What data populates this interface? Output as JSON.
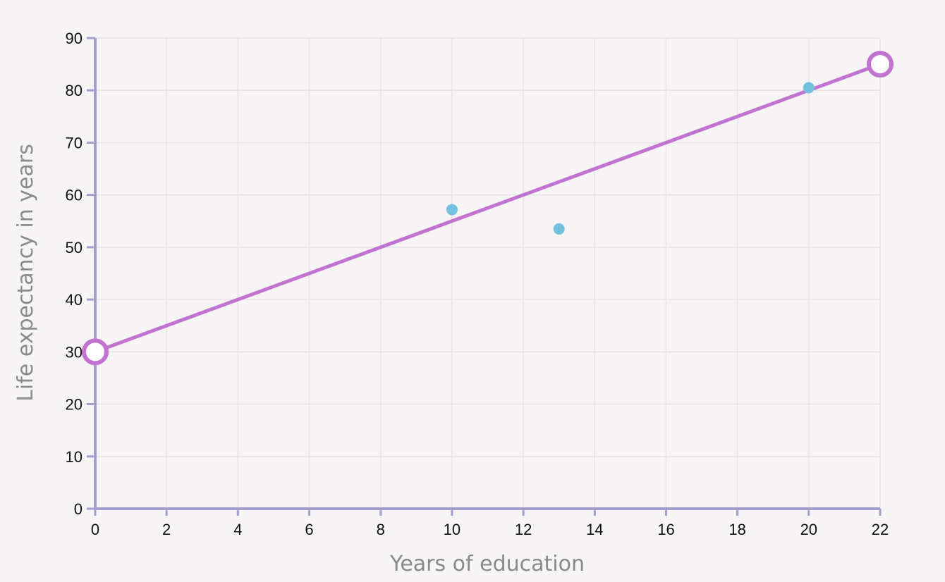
{
  "chart_data": {
    "type": "scatter",
    "xlabel": "Years of education",
    "ylabel": "Life expectancy in years",
    "xlim": [
      0,
      22
    ],
    "ylim": [
      0,
      90
    ],
    "x_ticks": [
      "0",
      "2",
      "4",
      "6",
      "8",
      "10",
      "12",
      "14",
      "16",
      "18",
      "20",
      "22"
    ],
    "y_ticks": [
      "0",
      "10",
      "20",
      "30",
      "40",
      "50",
      "60",
      "70",
      "80",
      "90"
    ],
    "grid": true,
    "points": [
      {
        "x": 10,
        "y": 57.2
      },
      {
        "x": 13,
        "y": 53.5
      },
      {
        "x": 20,
        "y": 80.5
      }
    ],
    "trend_line": {
      "start": {
        "x": 0,
        "y": 30
      },
      "end": {
        "x": 22,
        "y": 85
      }
    },
    "colors": {
      "points": "#74c0df",
      "line": "#c174cf",
      "axis": "#a39fcc",
      "grid": "#e7e4ec",
      "handle_fill": "#ffffff"
    }
  }
}
